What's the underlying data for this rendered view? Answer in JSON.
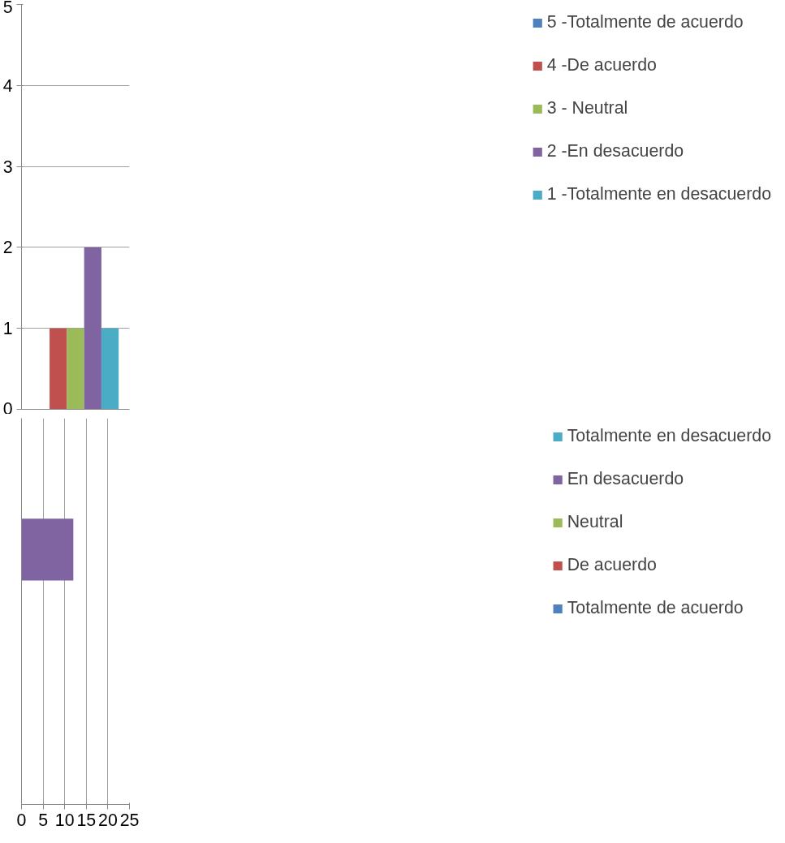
{
  "chart_data": [
    {
      "type": "bar",
      "categories": [
        null
      ],
      "series": [
        {
          "name": "5 -Totalmente de acuerdo",
          "color": "#4f81bd",
          "values": [
            0
          ]
        },
        {
          "name": "4 -De acuerdo",
          "color": "#c0504d",
          "values": [
            1
          ]
        },
        {
          "name": "3 - Neutral",
          "color": "#9bbb59",
          "values": [
            1
          ]
        },
        {
          "name": "2 -En desacuerdo",
          "color": "#8064a2",
          "values": [
            2
          ]
        },
        {
          "name": "1 -Totalmente en desacuerdo",
          "color": "#4bacc6",
          "values": [
            1
          ]
        }
      ],
      "ylim": [
        0,
        5
      ],
      "yticks": [
        0,
        1,
        2,
        3,
        4,
        5
      ],
      "grid": "y",
      "legend": "right",
      "tick_labels": "y"
    },
    {
      "type": "bar",
      "orientation": "horizontal",
      "categories": [
        null
      ],
      "series": [
        {
          "name": "Totalmente en desacuerdo",
          "color": "#4bacc6",
          "values": [
            0
          ]
        },
        {
          "name": "En desacuerdo",
          "color": "#8064a2",
          "values": [
            12
          ]
        },
        {
          "name": "Neutral",
          "color": "#9bbb59",
          "values": [
            0
          ]
        },
        {
          "name": "De acuerdo",
          "color": "#c0504d",
          "values": [
            0
          ]
        },
        {
          "name": "Totalmente de acuerdo",
          "color": "#4f81bd",
          "values": [
            0
          ]
        }
      ],
      "xlim": [
        0,
        25
      ],
      "xticks": [
        0,
        5,
        10,
        15,
        20,
        25
      ],
      "grid": "x",
      "legend": "right",
      "tick_labels": "x"
    }
  ]
}
